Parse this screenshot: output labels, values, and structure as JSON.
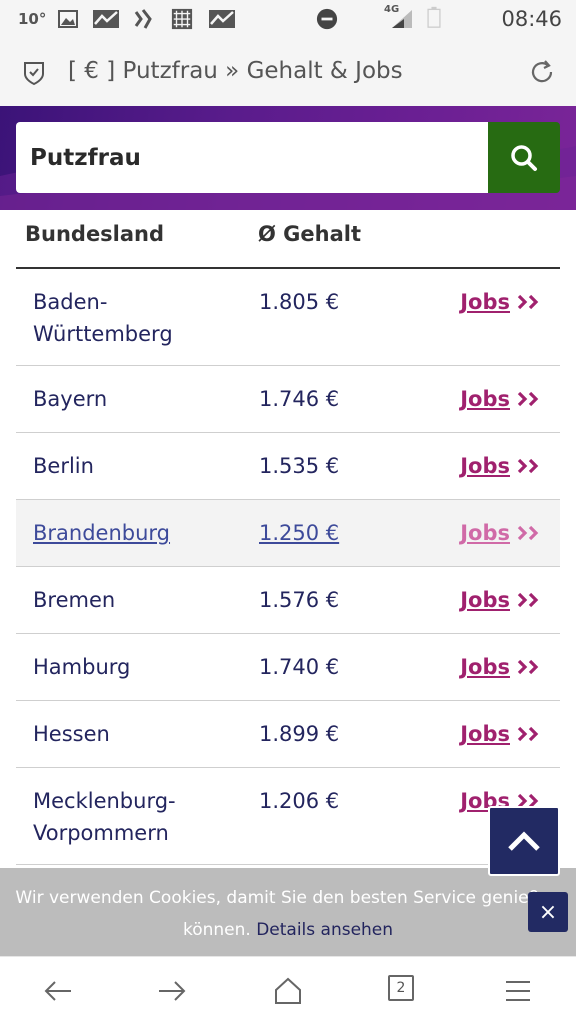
{
  "status_bar": {
    "temperature": "10°",
    "network": "4G",
    "time": "08:46"
  },
  "address_bar": {
    "title": "[ € ] Putzfrau » Gehalt & Jobs"
  },
  "search": {
    "value": "Putzfrau",
    "button_icon": "search-icon"
  },
  "table": {
    "headers": {
      "land": "Bundesland",
      "gehalt": "Ø Gehalt"
    },
    "rows": [
      {
        "land": "Baden-Württemberg",
        "land_lines": [
          "Baden-",
          "Württemberg"
        ],
        "gehalt": "1.805 €",
        "jobs": "Jobs"
      },
      {
        "land": "Bayern",
        "land_lines": [
          "Bayern"
        ],
        "gehalt": "1.746 €",
        "jobs": "Jobs"
      },
      {
        "land": "Berlin",
        "land_lines": [
          "Berlin"
        ],
        "gehalt": "1.535 €",
        "jobs": "Jobs"
      },
      {
        "land": "Brandenburg",
        "land_lines": [
          "Brandenburg"
        ],
        "gehalt": "1.250 €",
        "jobs": "Jobs",
        "hover": true
      },
      {
        "land": "Bremen",
        "land_lines": [
          "Bremen"
        ],
        "gehalt": "1.576 €",
        "jobs": "Jobs"
      },
      {
        "land": "Hamburg",
        "land_lines": [
          "Hamburg"
        ],
        "gehalt": "1.740 €",
        "jobs": "Jobs"
      },
      {
        "land": "Hessen",
        "land_lines": [
          "Hessen"
        ],
        "gehalt": "1.899 €",
        "jobs": "Jobs"
      },
      {
        "land": "Mecklenburg-Vorpommern",
        "land_lines": [
          "Mecklenburg-",
          "Vorpommern"
        ],
        "gehalt": "1.206 €",
        "jobs": "Jobs"
      }
    ]
  },
  "cookie": {
    "line1": "Wir verwenden Cookies, damit Sie den besten Service genießen",
    "line2_prefix": "können.",
    "link": "Details ansehen",
    "close": "×"
  },
  "bottom_nav": {
    "tab_count": "2"
  },
  "colors": {
    "brand_purple": "#5a1c8c",
    "search_green": "#276b12",
    "jobs_link": "#a0216e",
    "navy": "#222a63"
  }
}
